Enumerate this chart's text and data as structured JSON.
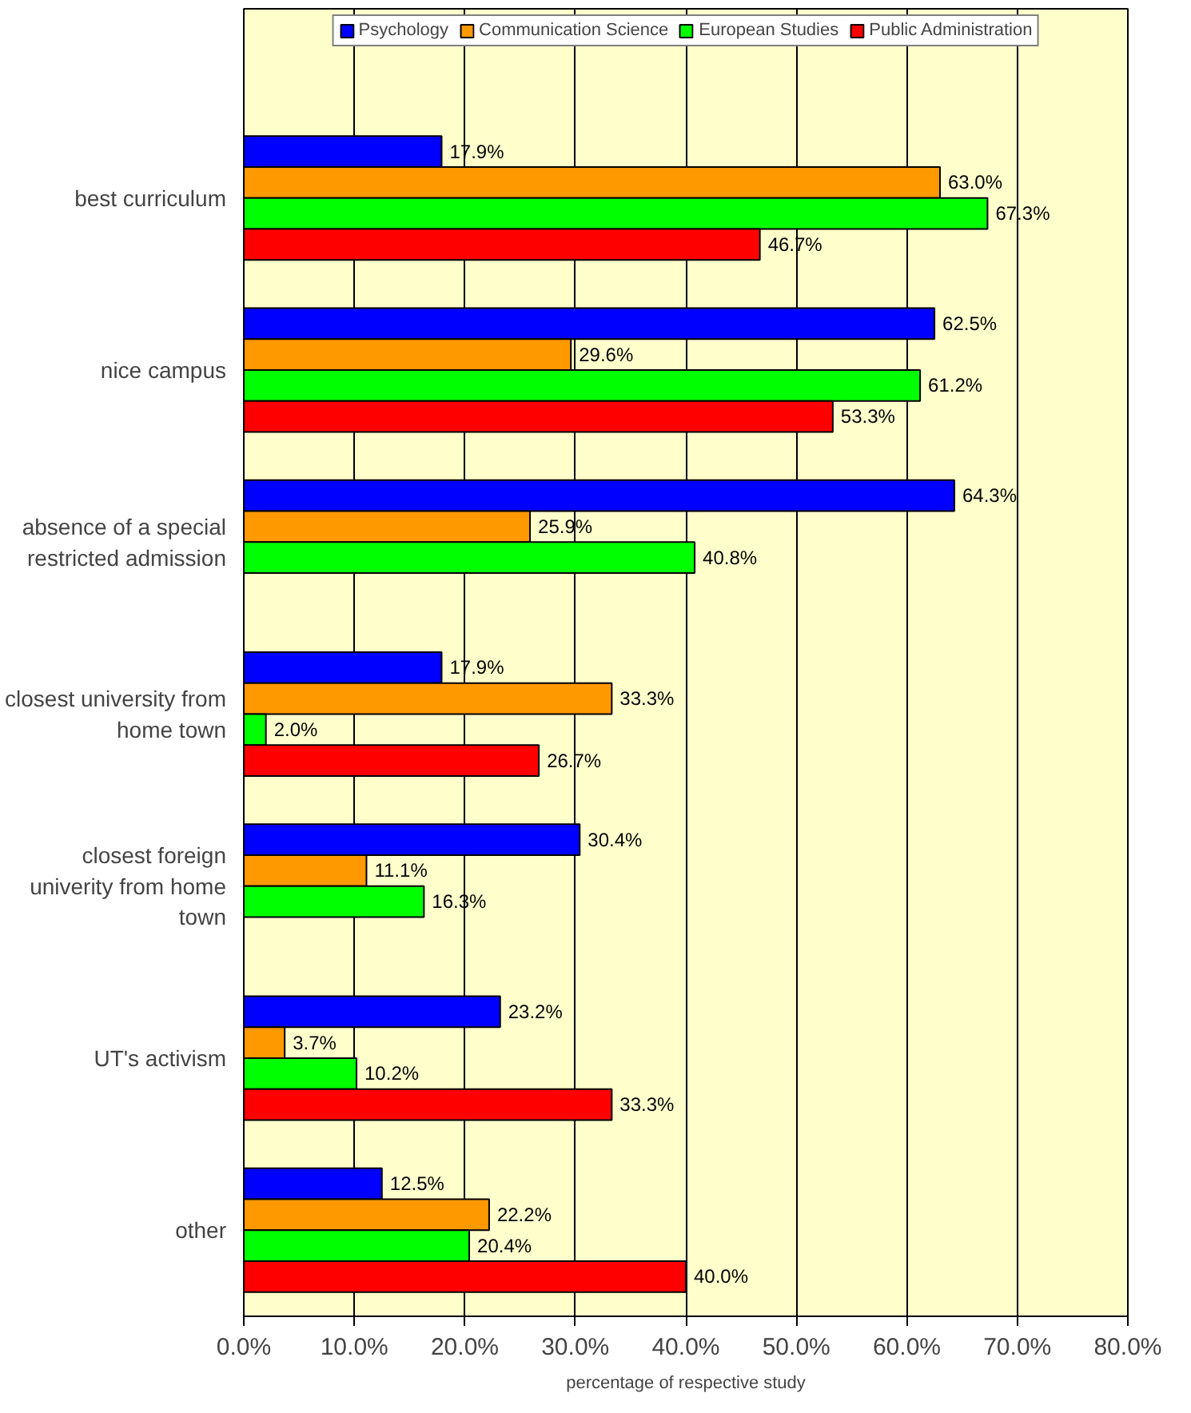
{
  "chart_data": {
    "type": "bar",
    "orientation": "horizontal",
    "xlabel": "percentage of respective study",
    "categories": [
      "best curriculum",
      "nice campus",
      "absence of a special\nrestricted admission",
      "closest university from\nhome town",
      "closest foreign\nuniverity from home\ntown",
      "UT's activism",
      "other"
    ],
    "series": [
      {
        "name": "Psychology",
        "color": "#0000ff",
        "values": [
          17.9,
          62.5,
          64.3,
          17.9,
          30.4,
          23.2,
          12.5
        ],
        "value_labels": [
          "17.9%",
          "62.5%",
          "64.3%",
          "17.9%",
          "30.4%",
          "23.2%",
          "12.5%"
        ]
      },
      {
        "name": "Communication Science",
        "color": "#ff9900",
        "values": [
          63.0,
          29.6,
          25.9,
          33.3,
          11.1,
          3.7,
          22.2
        ],
        "value_labels": [
          "63.0%",
          "29.6%",
          "25.9%",
          "33.3%",
          "11.1%",
          "3.7%",
          "22.2%"
        ]
      },
      {
        "name": "European Studies",
        "color": "#00ff00",
        "values": [
          67.3,
          61.2,
          40.8,
          2.0,
          16.3,
          10.2,
          20.4
        ],
        "value_labels": [
          "67.3%",
          "61.2%",
          "40.8%",
          "2.0%",
          "16.3%",
          "10.2%",
          "20.4%"
        ]
      },
      {
        "name": "Public Administration",
        "color": "#ff0000",
        "values": [
          46.7,
          53.3,
          null,
          26.7,
          null,
          33.3,
          40.0
        ],
        "value_labels": [
          "46.7%",
          "53.3%",
          null,
          "26.7%",
          null,
          "33.3%",
          "40.0%"
        ]
      }
    ],
    "xlim": [
      0,
      80
    ],
    "xticks": [
      {
        "value": 0,
        "label": "0.0%"
      },
      {
        "value": 10,
        "label": "10.0%"
      },
      {
        "value": 20,
        "label": "20.0%"
      },
      {
        "value": 30,
        "label": "30.0%"
      },
      {
        "value": 40,
        "label": "40.0%"
      },
      {
        "value": 50,
        "label": "50.0%"
      },
      {
        "value": 60,
        "label": "60.0%"
      },
      {
        "value": 70,
        "label": "70.0%"
      },
      {
        "value": 80,
        "label": "80.0%"
      }
    ],
    "grid": "x",
    "legend": "top"
  }
}
